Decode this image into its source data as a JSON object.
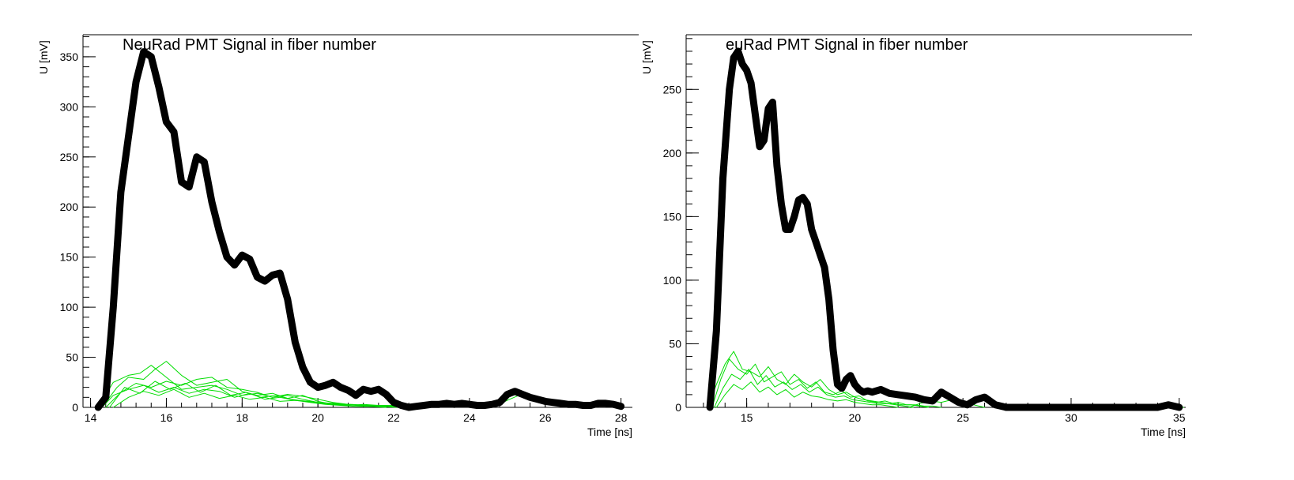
{
  "chart_data": [
    {
      "type": "line",
      "title": "NeuRad PMT Signal in fiber number",
      "xlabel": "Time [ns]",
      "ylabel": "U [mV]",
      "xlim": [
        13.8,
        28.3
      ],
      "ylim": [
        0,
        372
      ],
      "xticks": [
        14,
        16,
        18,
        20,
        22,
        24,
        26,
        28
      ],
      "yticks": [
        0,
        50,
        100,
        150,
        200,
        250,
        300,
        350
      ],
      "grid": false,
      "series": [
        {
          "color": "#000000",
          "role": "sum",
          "x": [
            14.2,
            14.4,
            14.6,
            14.8,
            15.0,
            15.2,
            15.4,
            15.6,
            15.8,
            16.0,
            16.2,
            16.4,
            16.6,
            16.8,
            17.0,
            17.2,
            17.4,
            17.6,
            17.8,
            18.0,
            18.2,
            18.4,
            18.6,
            18.8,
            19.0,
            19.2,
            19.4,
            19.6,
            19.8,
            20.0,
            20.2,
            20.4,
            20.6,
            20.8,
            21.0,
            21.2,
            21.4,
            21.6,
            21.8,
            22.0,
            22.2,
            22.4,
            22.6,
            22.8,
            23.0,
            23.2,
            23.4,
            23.6,
            23.8,
            24.0,
            24.2,
            24.4,
            24.6,
            24.8,
            25.0,
            25.2,
            25.4,
            25.6,
            25.8,
            26.0,
            26.2,
            26.4,
            26.6,
            26.8,
            27.0,
            27.2,
            27.4,
            27.6,
            27.8,
            28.0
          ],
          "y": [
            0,
            10,
            100,
            215,
            270,
            325,
            355,
            350,
            320,
            285,
            275,
            225,
            220,
            250,
            245,
            205,
            175,
            150,
            142,
            152,
            148,
            130,
            126,
            132,
            134,
            108,
            65,
            40,
            25,
            20,
            22,
            25,
            20,
            17,
            12,
            18,
            16,
            18,
            13,
            5,
            2,
            0,
            1,
            2,
            3,
            3,
            4,
            3,
            4,
            3,
            2,
            2,
            3,
            5,
            13,
            16,
            13,
            10,
            8,
            6,
            5,
            4,
            3,
            3,
            2,
            2,
            4,
            4,
            3,
            1
          ]
        },
        {
          "color": "#00dd00",
          "role": "fiber",
          "x": [
            14.2,
            14.6,
            15.0,
            15.3,
            15.6,
            16.0,
            16.4,
            16.8,
            17.2,
            17.6,
            18.0,
            18.4,
            18.8,
            19.2,
            19.6,
            20.0,
            20.4,
            20.8,
            21.2,
            21.6,
            22.0,
            22.4,
            22.8
          ],
          "y": [
            0,
            25,
            32,
            34,
            42,
            30,
            18,
            20,
            22,
            18,
            12,
            14,
            10,
            12,
            8,
            5,
            4,
            3,
            2,
            2,
            1,
            1,
            0
          ]
        },
        {
          "color": "#00dd00",
          "role": "fiber",
          "x": [
            14.3,
            14.7,
            15.0,
            15.4,
            15.7,
            16.0,
            16.4,
            16.8,
            17.2,
            17.6,
            18.0,
            18.4,
            18.8,
            19.2,
            19.6,
            20.0,
            20.4,
            20.8,
            21.2,
            21.6,
            22.0,
            22.4,
            22.8,
            23.2
          ],
          "y": [
            0,
            20,
            30,
            28,
            38,
            46,
            32,
            22,
            25,
            28,
            16,
            12,
            14,
            9,
            12,
            6,
            3,
            2,
            3,
            2,
            2,
            1,
            1,
            0
          ]
        },
        {
          "color": "#00dd00",
          "role": "fiber",
          "x": [
            14.4,
            14.8,
            15.2,
            15.6,
            16.0,
            16.4,
            16.8,
            17.2,
            17.6,
            18.0,
            18.4,
            18.8,
            19.2,
            19.6,
            20.0,
            20.4,
            20.8,
            21.2,
            21.6,
            22.0,
            22.4
          ],
          "y": [
            0,
            15,
            24,
            20,
            26,
            22,
            28,
            30,
            20,
            18,
            15,
            10,
            13,
            11,
            8,
            5,
            3,
            2,
            1,
            1,
            0
          ]
        },
        {
          "color": "#00dd00",
          "role": "fiber",
          "x": [
            14.3,
            14.6,
            15.0,
            15.4,
            15.8,
            16.2,
            16.6,
            17.0,
            17.4,
            17.8,
            18.2,
            18.6,
            19.0,
            19.4,
            19.8,
            20.2,
            20.6,
            21.0,
            21.4,
            21.8,
            22.2
          ],
          "y": [
            0,
            12,
            18,
            22,
            15,
            20,
            14,
            18,
            16,
            10,
            14,
            8,
            10,
            7,
            6,
            4,
            3,
            2,
            1,
            1,
            0
          ]
        },
        {
          "color": "#00dd00",
          "role": "fiber",
          "x": [
            14.5,
            14.9,
            15.3,
            15.7,
            16.1,
            16.5,
            16.9,
            17.3,
            17.7,
            18.1,
            18.5,
            18.9,
            19.3,
            19.7,
            20.1,
            20.5,
            20.9,
            21.3,
            21.7,
            22.1
          ],
          "y": [
            0,
            20,
            14,
            26,
            18,
            24,
            15,
            22,
            12,
            15,
            10,
            12,
            8,
            6,
            4,
            3,
            3,
            2,
            1,
            0
          ]
        },
        {
          "color": "#00dd00",
          "role": "fiber",
          "x": [
            14.6,
            15.0,
            15.4,
            15.8,
            16.2,
            16.6,
            17.0,
            17.4,
            17.8,
            18.2,
            18.6,
            19.0,
            19.4,
            19.8,
            20.2,
            20.6,
            21.0,
            21.4,
            21.8
          ],
          "y": [
            0,
            10,
            16,
            12,
            18,
            10,
            14,
            9,
            12,
            8,
            10,
            6,
            7,
            5,
            3,
            2,
            1,
            1,
            0
          ]
        },
        {
          "color": "#00dd00",
          "role": "fiber",
          "x": [
            24.6,
            25.0,
            25.3,
            25.6,
            26.0,
            26.4,
            26.8,
            27.2,
            27.6,
            28.0
          ],
          "y": [
            0,
            7,
            12,
            9,
            5,
            3,
            2,
            3,
            2,
            0
          ]
        }
      ]
    },
    {
      "type": "line",
      "title": "euRad PMT Signal in fiber number",
      "xlabel": "Time [ns]",
      "ylabel": "U [mV]",
      "xlim": [
        12.2,
        35.3
      ],
      "ylim": [
        0,
        293
      ],
      "xticks": [
        15,
        20,
        25,
        30,
        35
      ],
      "yticks": [
        0,
        50,
        100,
        150,
        200,
        250
      ],
      "grid": false,
      "series": [
        {
          "color": "#000000",
          "role": "sum",
          "x": [
            13.3,
            13.6,
            13.9,
            14.2,
            14.4,
            14.6,
            14.8,
            15.0,
            15.2,
            15.4,
            15.6,
            15.8,
            16.0,
            16.2,
            16.4,
            16.6,
            16.8,
            17.0,
            17.2,
            17.4,
            17.6,
            17.8,
            18.0,
            18.2,
            18.4,
            18.6,
            18.8,
            19.0,
            19.2,
            19.4,
            19.6,
            19.8,
            20.0,
            20.2,
            20.4,
            20.6,
            20.8,
            21.2,
            21.6,
            22.0,
            22.4,
            22.8,
            23.2,
            23.6,
            24.0,
            24.4,
            24.8,
            25.2,
            25.6,
            26.0,
            26.5,
            27.0,
            28.0,
            29.0,
            30.0,
            31.0,
            32.0,
            33.0,
            34.0,
            34.5,
            35.0
          ],
          "y": [
            0,
            60,
            180,
            250,
            275,
            280,
            270,
            265,
            255,
            230,
            205,
            210,
            235,
            240,
            190,
            160,
            140,
            140,
            150,
            163,
            165,
            160,
            140,
            130,
            120,
            110,
            85,
            45,
            18,
            15,
            22,
            25,
            18,
            14,
            12,
            13,
            12,
            14,
            11,
            10,
            9,
            8,
            6,
            5,
            12,
            8,
            4,
            2,
            6,
            8,
            2,
            0,
            0,
            0,
            0,
            0,
            0,
            0,
            0,
            2,
            0
          ]
        },
        {
          "color": "#00dd00",
          "role": "fiber",
          "x": [
            13.2,
            13.6,
            14.0,
            14.4,
            14.8,
            15.2,
            15.6,
            16.0,
            16.4,
            16.8,
            17.2,
            17.6,
            18.0,
            18.4,
            18.8,
            19.2,
            19.6,
            20.0,
            20.4,
            20.8,
            21.2,
            21.6,
            22.0,
            22.4,
            22.8,
            23.2,
            23.6,
            24.0
          ],
          "y": [
            0,
            18,
            34,
            44,
            30,
            28,
            24,
            32,
            22,
            18,
            26,
            20,
            16,
            22,
            14,
            10,
            12,
            8,
            6,
            5,
            4,
            3,
            4,
            2,
            2,
            1,
            1,
            0
          ]
        },
        {
          "color": "#00dd00",
          "role": "fiber",
          "x": [
            13.4,
            13.8,
            14.2,
            14.6,
            15.0,
            15.4,
            15.8,
            16.2,
            16.6,
            17.0,
            17.4,
            17.8,
            18.2,
            18.6,
            19.0,
            19.4,
            19.8,
            20.2,
            20.6,
            21.0,
            21.4,
            21.8,
            22.2,
            22.6,
            23.0,
            23.4
          ],
          "y": [
            0,
            22,
            38,
            30,
            26,
            34,
            20,
            24,
            28,
            18,
            22,
            15,
            20,
            12,
            10,
            13,
            8,
            9,
            5,
            4,
            5,
            3,
            2,
            2,
            1,
            0
          ]
        },
        {
          "color": "#00dd00",
          "role": "fiber",
          "x": [
            13.5,
            13.9,
            14.3,
            14.7,
            15.1,
            15.5,
            15.9,
            16.3,
            16.7,
            17.1,
            17.5,
            17.9,
            18.3,
            18.7,
            19.1,
            19.5,
            19.9,
            20.3,
            20.7,
            21.1,
            21.5,
            21.9,
            22.3,
            22.7
          ],
          "y": [
            0,
            15,
            26,
            22,
            30,
            18,
            25,
            16,
            20,
            14,
            18,
            12,
            16,
            10,
            8,
            9,
            6,
            5,
            4,
            3,
            3,
            2,
            1,
            0
          ]
        },
        {
          "color": "#00dd00",
          "role": "fiber",
          "x": [
            13.6,
            14.0,
            14.4,
            14.8,
            15.2,
            15.6,
            16.0,
            16.4,
            16.8,
            17.2,
            17.6,
            18.0,
            18.4,
            18.8,
            19.2,
            19.6,
            20.0,
            20.4,
            20.8,
            21.2,
            21.6,
            22.0
          ],
          "y": [
            0,
            10,
            18,
            14,
            20,
            12,
            16,
            10,
            14,
            8,
            12,
            9,
            8,
            6,
            5,
            6,
            4,
            3,
            2,
            2,
            1,
            0
          ]
        },
        {
          "color": "#00dd00",
          "role": "fiber",
          "x": [
            22.5,
            23.0,
            23.5,
            24.0,
            24.5,
            25.0,
            25.5,
            26.0
          ],
          "y": [
            0,
            3,
            5,
            4,
            6,
            4,
            2,
            0
          ]
        },
        {
          "color": "#00dd00",
          "role": "fiber",
          "x": [
            33.6,
            34.0,
            34.4,
            34.8,
            35.2
          ],
          "y": [
            0,
            1,
            2,
            1,
            0
          ]
        }
      ]
    }
  ]
}
